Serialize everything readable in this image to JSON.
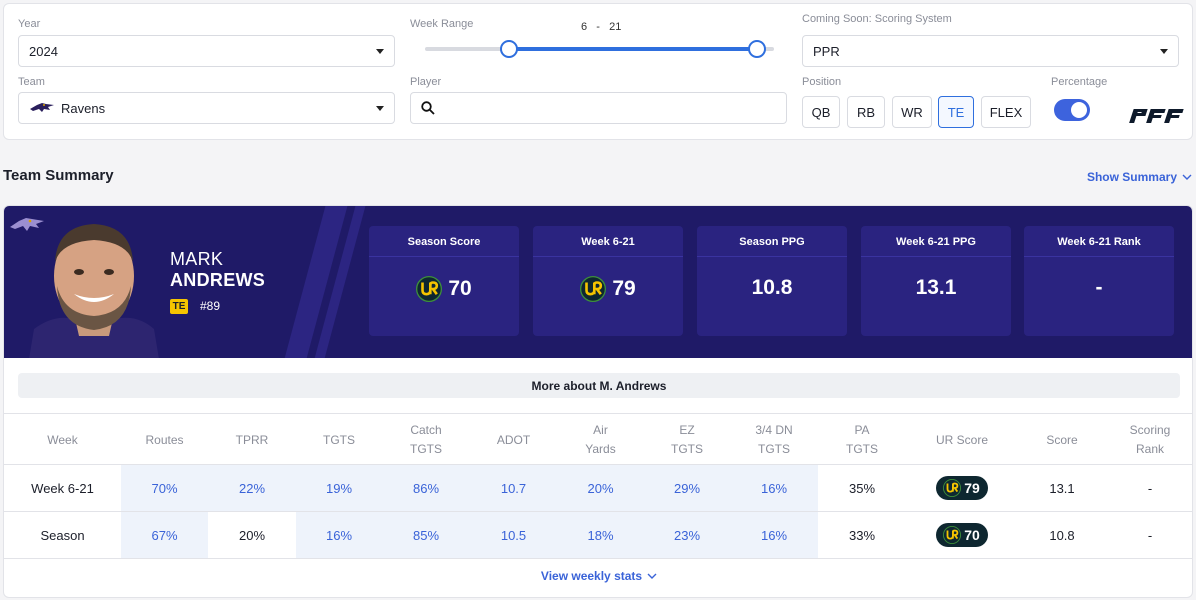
{
  "filters": {
    "year": {
      "label": "Year",
      "value": "2024"
    },
    "week_range": {
      "label": "Week Range",
      "start": "6",
      "sep": "-",
      "end": "21",
      "start_fraction": 0.24,
      "end_fraction": 0.952
    },
    "scoring": {
      "label": "Coming Soon: Scoring System",
      "value": "PPR"
    },
    "team": {
      "label": "Team",
      "value": "Ravens"
    },
    "player": {
      "label": "Player",
      "placeholder": "",
      "value": ""
    },
    "position": {
      "label": "Position",
      "options": [
        "QB",
        "RB",
        "WR",
        "TE",
        "FLEX"
      ],
      "selected": "TE"
    },
    "percentage": {
      "label": "Percentage",
      "enabled": true
    },
    "logo_text": "PFF"
  },
  "team_summary": {
    "title": "Team Summary",
    "show_summary": "Show Summary"
  },
  "player": {
    "first_name": "MARK",
    "last_name": "ANDREWS",
    "position": "TE",
    "jersey": "#89",
    "more_about": "More about M. Andrews"
  },
  "stats": [
    {
      "label": "Season Score",
      "value": "70",
      "ur_icon": true
    },
    {
      "label": "Week 6-21",
      "value": "79",
      "ur_icon": true
    },
    {
      "label": "Season PPG",
      "value": "10.8",
      "ur_icon": false
    },
    {
      "label": "Week 6-21 PPG",
      "value": "13.1",
      "ur_icon": false
    },
    {
      "label": "Week 6-21 Rank",
      "value": "-",
      "ur_icon": false
    }
  ],
  "table": {
    "headers": [
      {
        "line1": "Week",
        "line2": ""
      },
      {
        "line1": "Routes",
        "line2": ""
      },
      {
        "line1": "TPRR",
        "line2": ""
      },
      {
        "line1": "TGTS",
        "line2": ""
      },
      {
        "line1": "Catch",
        "line2": "TGTS"
      },
      {
        "line1": "ADOT",
        "line2": ""
      },
      {
        "line1": "Air",
        "line2": "Yards"
      },
      {
        "line1": "EZ",
        "line2": "TGTS"
      },
      {
        "line1": "3/4 DN",
        "line2": "TGTS"
      },
      {
        "line1": "PA",
        "line2": "TGTS"
      },
      {
        "line1": "UR Score",
        "line2": ""
      },
      {
        "line1": "Score",
        "line2": ""
      },
      {
        "line1": "Scoring",
        "line2": "Rank"
      }
    ],
    "rows": [
      {
        "cells": [
          "Week 6-21",
          "70%",
          "22%",
          "19%",
          "86%",
          "10.7",
          "20%",
          "29%",
          "16%",
          "35%",
          "79",
          "13.1",
          "-"
        ],
        "highlight": [
          false,
          true,
          true,
          true,
          true,
          true,
          true,
          true,
          true,
          false,
          false,
          false,
          false
        ]
      },
      {
        "cells": [
          "Season",
          "67%",
          "20%",
          "16%",
          "85%",
          "10.5",
          "18%",
          "23%",
          "16%",
          "33%",
          "70",
          "10.8",
          "-"
        ],
        "highlight": [
          false,
          true,
          false,
          true,
          true,
          true,
          true,
          true,
          true,
          false,
          false,
          false,
          false
        ]
      }
    ],
    "view_weekly": "View weekly stats"
  },
  "colors": {
    "accent": "#3a63d8",
    "banner": "#1f1a67",
    "stat_box": "#2a2380",
    "badge": "#f5c400",
    "ur_pill": "#0e2730"
  }
}
